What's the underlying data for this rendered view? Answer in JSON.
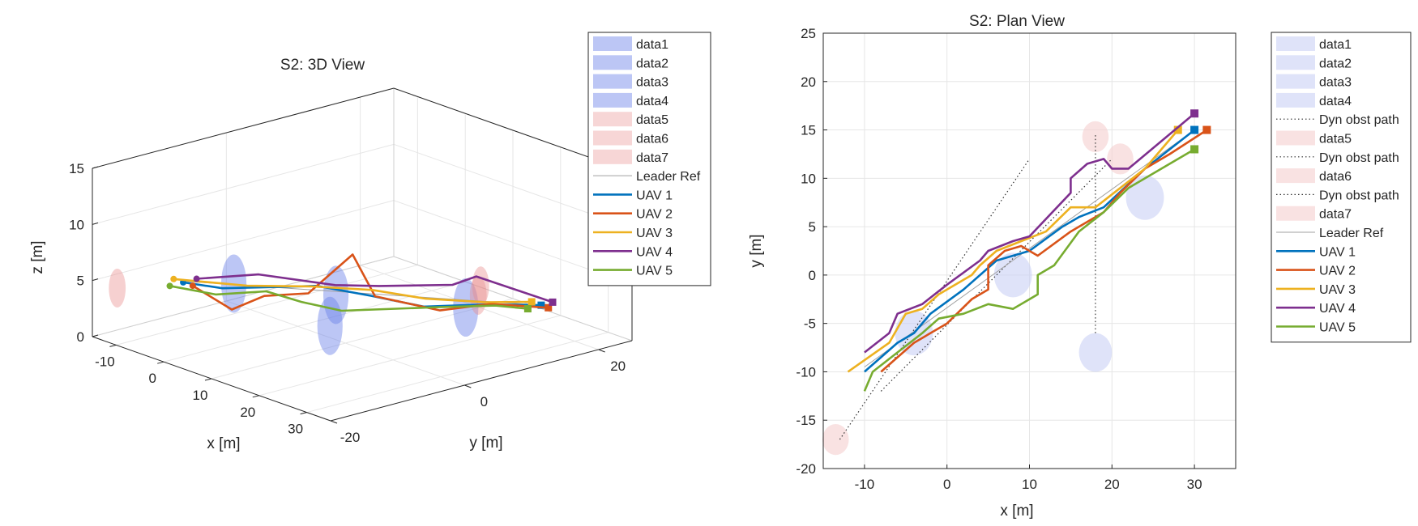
{
  "chart_data": [
    {
      "type": "line3d",
      "title": "S2: 3D View",
      "xlabel": "x [m]",
      "ylabel": "y [m]",
      "zlabel": "z [m]",
      "xlim": [
        -15,
        35
      ],
      "ylim": [
        -20,
        25
      ],
      "zlim": [
        0,
        15
      ],
      "xticks": [
        -10,
        0,
        10,
        20,
        30
      ],
      "yticks": [
        -20,
        0,
        20
      ],
      "zticks": [
        0,
        5,
        10,
        15
      ],
      "obstacles": [
        {
          "name": "data1",
          "kind": "static",
          "x": -5,
          "y": -6,
          "z": 4,
          "r": 3
        },
        {
          "name": "data2",
          "kind": "static",
          "x": 8,
          "y": 0,
          "z": 4,
          "r": 3
        },
        {
          "name": "data3",
          "kind": "static",
          "x": 18,
          "y": -8,
          "z": 4,
          "r": 3
        },
        {
          "name": "data4",
          "kind": "static",
          "x": 24,
          "y": 8,
          "z": 4,
          "r": 3
        },
        {
          "name": "data5",
          "kind": "dynamic",
          "x": -14,
          "y": -17,
          "z": 4,
          "r": 2
        },
        {
          "name": "data6",
          "kind": "dynamic",
          "x": 18,
          "y": 14.5,
          "z": 4,
          "r": 2
        },
        {
          "name": "data7",
          "kind": "dynamic",
          "x": 21,
          "y": 12,
          "z": 4,
          "r": 2
        }
      ],
      "series": [
        {
          "name": "Leader Ref",
          "color": "#a0a0a0",
          "points": [
            [
              -10,
              -9.5,
              4
            ],
            [
              30,
              15,
              4
            ]
          ]
        },
        {
          "name": "UAV 1",
          "color": "#0072BD",
          "points": [
            [
              -10,
              -10,
              4
            ],
            [
              -6,
              -7,
              3.6
            ],
            [
              -2,
              -4,
              3.8
            ],
            [
              4,
              0,
              4.2
            ],
            [
              11,
              3,
              3.9
            ],
            [
              18,
              6,
              3.5
            ],
            [
              24,
              11,
              3.8
            ],
            [
              30,
              15,
              4
            ]
          ]
        },
        {
          "name": "UAV 2",
          "color": "#D95319",
          "points": [
            [
              -8,
              -10,
              4
            ],
            [
              -4,
              -7,
              2
            ],
            [
              0,
              -5,
              3.5
            ],
            [
              5,
              -2,
              4
            ],
            [
              8,
              2.5,
              7.2
            ],
            [
              12,
              3,
              4
            ],
            [
              20,
              7,
              3.3
            ],
            [
              25,
              11,
              4
            ],
            [
              31.5,
              15,
              4
            ]
          ]
        },
        {
          "name": "UAV 3",
          "color": "#EDB120",
          "points": [
            [
              -12,
              -10,
              4
            ],
            [
              -5,
              -4,
              3.5
            ],
            [
              3,
              0,
              4
            ],
            [
              10,
              4,
              4.1
            ],
            [
              17,
              7,
              3.9
            ],
            [
              24,
              11,
              4
            ],
            [
              28,
              15,
              4
            ]
          ]
        },
        {
          "name": "UAV 4",
          "color": "#7E2F8E",
          "points": [
            [
              -10,
              -8,
              4
            ],
            [
              -4,
              -3,
              4.5
            ],
            [
              5,
              2,
              4.1
            ],
            [
              10,
              5,
              4.3
            ],
            [
              17,
              11,
              4.5
            ],
            [
              22,
              11,
              6
            ],
            [
              30,
              16.7,
              4
            ]
          ]
        },
        {
          "name": "UAV 5",
          "color": "#77AC30",
          "points": [
            [
              -10,
              -12,
              4
            ],
            [
              -6,
              -8,
              3.2
            ],
            [
              -1,
              -4,
              3.6
            ],
            [
              5,
              -3,
              3.4
            ],
            [
              12,
              -2,
              3.5
            ],
            [
              20,
              7,
              3.6
            ],
            [
              26,
              11,
              4
            ],
            [
              30,
              13,
              4
            ]
          ]
        }
      ],
      "legend": [
        "data1",
        "data2",
        "data3",
        "data4",
        "data5",
        "data6",
        "data7",
        "Leader Ref",
        "UAV 1",
        "UAV 2",
        "UAV 3",
        "UAV 4",
        "UAV 5"
      ],
      "legend_location": "outside-right",
      "grid": true
    },
    {
      "type": "line",
      "title": "S2: Plan View",
      "xlabel": "x [m]",
      "ylabel": "y [m]",
      "xlim": [
        -15,
        35
      ],
      "ylim": [
        -20,
        25
      ],
      "xticks": [
        -10,
        0,
        10,
        20,
        30
      ],
      "yticks": [
        -20,
        -15,
        -10,
        -5,
        0,
        5,
        10,
        15,
        20,
        25
      ],
      "obstacles": [
        {
          "name": "data1",
          "kind": "static",
          "x": -4,
          "y": -6,
          "r": 2.3
        },
        {
          "name": "data2",
          "kind": "static",
          "x": 8,
          "y": 0,
          "r": 2.3
        },
        {
          "name": "data3",
          "kind": "static",
          "x": 18,
          "y": -8,
          "r": 2
        },
        {
          "name": "data4",
          "kind": "static",
          "x": 24,
          "y": 8,
          "r": 2.3
        },
        {
          "name": "data5",
          "kind": "dynamic",
          "x": -13.5,
          "y": -17,
          "r": 1.6
        },
        {
          "name": "data6",
          "kind": "dynamic",
          "x": 18,
          "y": 14.3,
          "r": 1.6
        },
        {
          "name": "data7",
          "kind": "dynamic",
          "x": 21,
          "y": 12,
          "r": 1.6
        }
      ],
      "dynamic_paths": [
        {
          "name": "Dyn obst path",
          "points": [
            [
              -13,
              -17
            ],
            [
              10,
              12
            ]
          ]
        },
        {
          "name": "Dyn obst path",
          "points": [
            [
              18,
              -6
            ],
            [
              18,
              14.5
            ]
          ]
        },
        {
          "name": "Dyn obst path",
          "points": [
            [
              -8,
              -12
            ],
            [
              20,
              12
            ]
          ]
        }
      ],
      "series": [
        {
          "name": "Leader Ref",
          "color": "#a0a0a0",
          "points": [
            [
              -10,
              -9.5
            ],
            [
              30,
              15
            ]
          ]
        },
        {
          "name": "UAV 1",
          "color": "#0072BD",
          "points": [
            [
              -10,
              -10
            ],
            [
              -6,
              -7
            ],
            [
              -4,
              -6
            ],
            [
              -2,
              -4
            ],
            [
              2,
              -1.5
            ],
            [
              6,
              1.5
            ],
            [
              10,
              2.5
            ],
            [
              14,
              5
            ],
            [
              16,
              6
            ],
            [
              19,
              7
            ],
            [
              24,
              11
            ],
            [
              30,
              15
            ]
          ]
        },
        {
          "name": "UAV 2",
          "color": "#D95319",
          "points": [
            [
              -8,
              -10
            ],
            [
              -4,
              -7
            ],
            [
              0,
              -5
            ],
            [
              3,
              -2.5
            ],
            [
              5,
              -1.5
            ],
            [
              5,
              1
            ],
            [
              7,
              2.5
            ],
            [
              9,
              3
            ],
            [
              11,
              2
            ],
            [
              15,
              4.5
            ],
            [
              19,
              6.5
            ],
            [
              21,
              8.5
            ],
            [
              24,
              11
            ],
            [
              27,
              12.5
            ],
            [
              31.5,
              15
            ]
          ]
        },
        {
          "name": "UAV 3",
          "color": "#EDB120",
          "points": [
            [
              -12,
              -10
            ],
            [
              -7,
              -7
            ],
            [
              -5,
              -4
            ],
            [
              -3,
              -3.5
            ],
            [
              -1,
              -2
            ],
            [
              3,
              0
            ],
            [
              4,
              1
            ],
            [
              6,
              2.5
            ],
            [
              9,
              3.5
            ],
            [
              12,
              4.5
            ],
            [
              15,
              7
            ],
            [
              18,
              7
            ],
            [
              21,
              9
            ],
            [
              24,
              11
            ],
            [
              28,
              15
            ]
          ]
        },
        {
          "name": "UAV 4",
          "color": "#7E2F8E",
          "points": [
            [
              -10,
              -8
            ],
            [
              -7,
              -6
            ],
            [
              -6,
              -4
            ],
            [
              -3,
              -3
            ],
            [
              0,
              -1
            ],
            [
              4,
              1.5
            ],
            [
              5,
              2.5
            ],
            [
              8,
              3.5
            ],
            [
              10,
              4
            ],
            [
              15,
              8.5
            ],
            [
              15,
              10
            ],
            [
              17,
              11.5
            ],
            [
              19,
              12
            ],
            [
              20,
              11
            ],
            [
              22,
              11
            ],
            [
              30,
              16.7
            ]
          ]
        },
        {
          "name": "UAV 5",
          "color": "#77AC30",
          "points": [
            [
              -10,
              -12
            ],
            [
              -9,
              -10
            ],
            [
              -6,
              -8
            ],
            [
              -3,
              -6
            ],
            [
              -1,
              -4.5
            ],
            [
              2,
              -4
            ],
            [
              5,
              -3
            ],
            [
              8,
              -3.5
            ],
            [
              11,
              -2
            ],
            [
              11,
              0
            ],
            [
              13,
              1
            ],
            [
              16,
              4.5
            ],
            [
              19,
              6.5
            ],
            [
              22,
              9
            ],
            [
              26,
              11
            ],
            [
              30,
              13
            ]
          ]
        }
      ],
      "legend": [
        "data1",
        "data2",
        "data3",
        "data4",
        "Dyn obst path",
        "data5",
        "Dyn obst path",
        "data6",
        "Dyn obst path",
        "data7",
        "Leader Ref",
        "UAV 1",
        "UAV 2",
        "UAV 3",
        "UAV 4",
        "UAV 5"
      ],
      "legend_location": "outside-right",
      "grid": true
    }
  ],
  "colors": {
    "static_obstacle": "#6b80e8",
    "dynamic_obstacle": "#e88a8a",
    "axis": "#262626",
    "grid": "#e6e6e6"
  }
}
